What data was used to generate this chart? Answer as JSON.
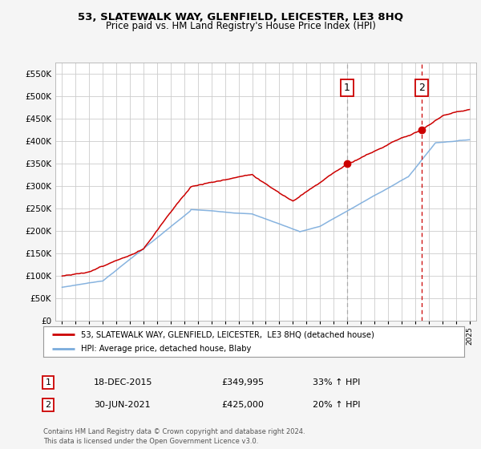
{
  "title1": "53, SLATEWALK WAY, GLENFIELD, LEICESTER, LE3 8HQ",
  "title2": "Price paid vs. HM Land Registry's House Price Index (HPI)",
  "legend_line1": "53, SLATEWALK WAY, GLENFIELD, LEICESTER,  LE3 8HQ (detached house)",
  "legend_line2": "HPI: Average price, detached house, Blaby",
  "sale1_date": "18-DEC-2015",
  "sale1_price": "£349,995",
  "sale1_hpi": "33% ↑ HPI",
  "sale2_date": "30-JUN-2021",
  "sale2_price": "£425,000",
  "sale2_hpi": "20% ↑ HPI",
  "footer": "Contains HM Land Registry data © Crown copyright and database right 2024.\nThis data is licensed under the Open Government Licence v3.0.",
  "sale1_x": 2015.97,
  "sale2_x": 2021.5,
  "ylim": [
    0,
    575000
  ],
  "xlim": [
    1994.5,
    2025.5
  ],
  "background": "#f5f5f5",
  "plot_bg": "#ffffff",
  "red_color": "#cc0000",
  "blue_color": "#7aabdc",
  "vline1_color": "#aaaaaa",
  "vline2_color": "#cc0000"
}
